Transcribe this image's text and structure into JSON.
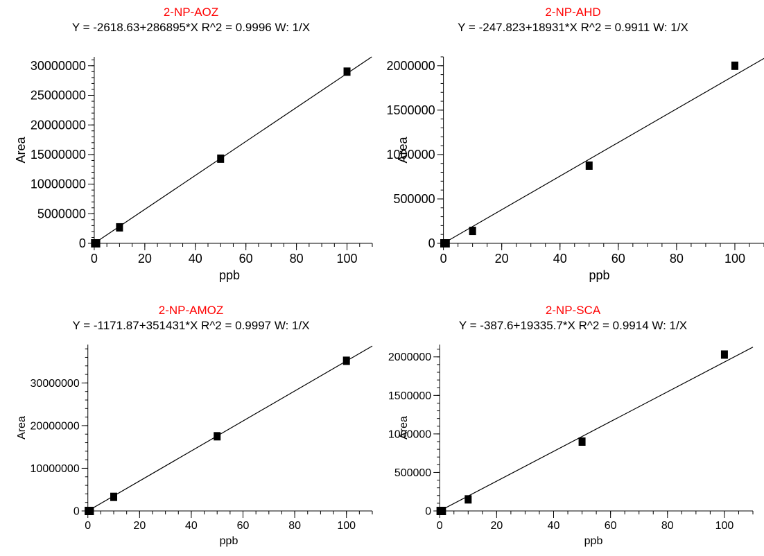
{
  "chart_data": [
    {
      "type": "scatter",
      "title": "2-NP-AOZ",
      "subtitle": "Y = -2618.63+286895*X   R^2 = 0.9996   W: 1/X",
      "xlabel": "ppb",
      "ylabel": "Area",
      "xlim": [
        -3,
        110
      ],
      "ylim": [
        0,
        31500000
      ],
      "xticks": [
        0,
        20,
        40,
        60,
        80,
        100
      ],
      "yticks": [
        0,
        5000000,
        10000000,
        15000000,
        20000000,
        25000000,
        30000000
      ],
      "ytick_labels": [
        "0",
        "5000000",
        "10000000",
        "15000000",
        "20000000",
        "25000000",
        "30000000"
      ],
      "fit": {
        "intercept": -2618.63,
        "slope": 286895
      },
      "series": [
        {
          "x": [
            0.1,
            0.5,
            1,
            10,
            50,
            100
          ],
          "y": [
            0,
            0,
            0,
            2700000,
            14300000,
            29000000
          ]
        }
      ]
    },
    {
      "type": "scatter",
      "title": "2-NP-AHD",
      "subtitle": "Y = -247.823+18931*X   R^2 = 0.9911   W: 1/X",
      "xlabel": "ppb",
      "ylabel": "Area",
      "xlim": [
        -3,
        110
      ],
      "ylim": [
        0,
        2100000
      ],
      "xticks": [
        0,
        20,
        40,
        60,
        80,
        100
      ],
      "yticks": [
        0,
        500000,
        1000000,
        1500000,
        2000000
      ],
      "ytick_labels": [
        "0",
        "500000",
        "1000000",
        "1500000",
        "2000000"
      ],
      "fit": {
        "intercept": -247.823,
        "slope": 18931
      },
      "series": [
        {
          "x": [
            0.1,
            0.5,
            1,
            10,
            50,
            100
          ],
          "y": [
            0,
            0,
            0,
            140000,
            875000,
            2000000
          ]
        }
      ]
    },
    {
      "type": "scatter",
      "title": "2-NP-AMOZ",
      "subtitle": "Y = -1171.87+351431*X   R^2 = 0.9997   W: 1/X",
      "xlabel": "ppb",
      "ylabel": "Area",
      "xlim": [
        -1,
        110
      ],
      "ylim": [
        0,
        39000000
      ],
      "xticks": [
        0,
        20,
        40,
        60,
        80,
        100
      ],
      "yticks": [
        0,
        10000000,
        20000000,
        30000000
      ],
      "ytick_labels": [
        "0",
        "10000000",
        "20000000",
        "30000000"
      ],
      "fit": {
        "intercept": -1171.87,
        "slope": 351431
      },
      "series": [
        {
          "x": [
            0.1,
            0.5,
            1,
            10,
            50,
            100
          ],
          "y": [
            0,
            0,
            0,
            3300000,
            17500000,
            35200000
          ]
        }
      ]
    },
    {
      "type": "scatter",
      "title": "2-NP-SCA",
      "subtitle": "Y = -387.6+19335.7*X   R^2 = 0.9914   W: 1/X",
      "xlabel": "ppb",
      "ylabel": "Area",
      "xlim": [
        -2,
        110
      ],
      "ylim": [
        0,
        2160000
      ],
      "xticks": [
        0,
        20,
        40,
        60,
        80,
        100
      ],
      "yticks": [
        0,
        500000,
        1000000,
        1500000,
        2000000
      ],
      "ytick_labels": [
        "0",
        "500000",
        "1000000",
        "1500000",
        "2000000"
      ],
      "fit": {
        "intercept": -387.6,
        "slope": 19335.7
      },
      "series": [
        {
          "x": [
            0.1,
            0.5,
            1,
            10,
            50,
            100
          ],
          "y": [
            0,
            0,
            0,
            150000,
            900000,
            2030000
          ]
        }
      ]
    }
  ]
}
